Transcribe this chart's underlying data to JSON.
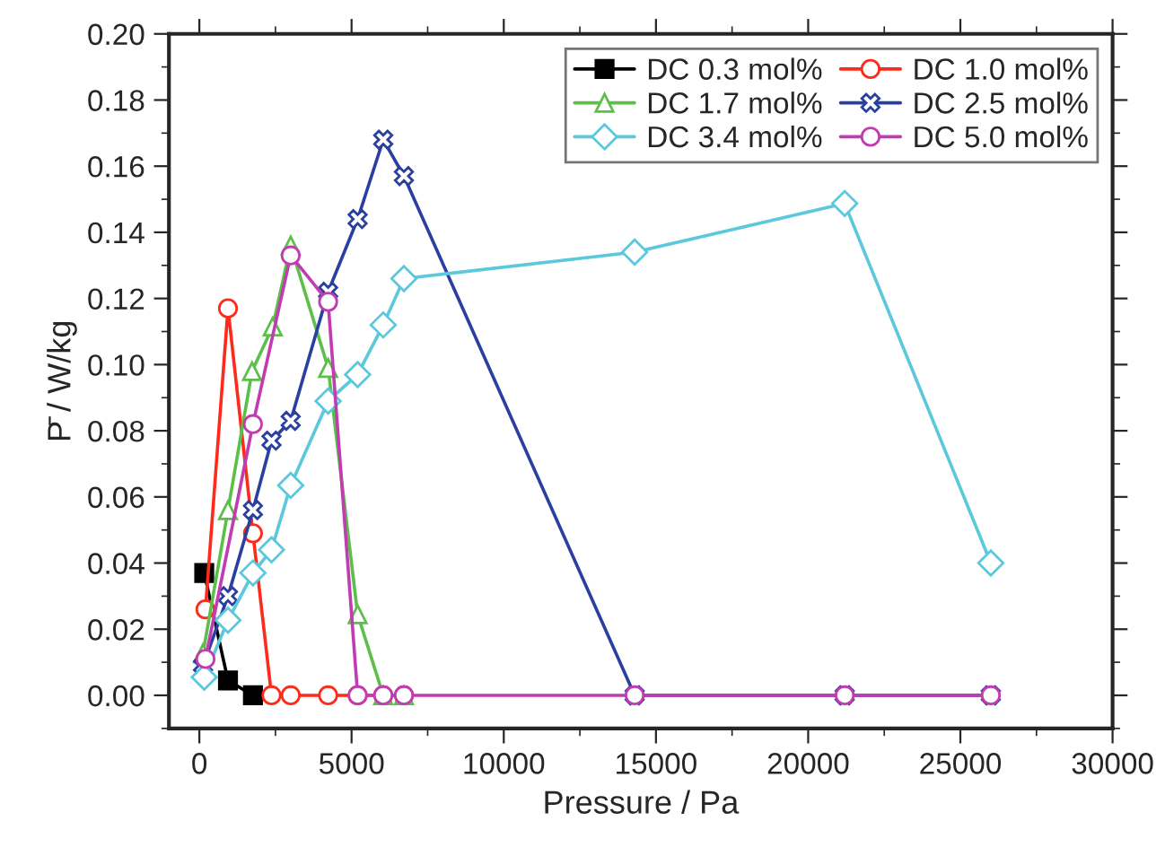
{
  "chart_data": {
    "type": "line",
    "xlabel": "Pressure / Pa",
    "ylabel": "P̄ / W/kg",
    "xlim": [
      -1000,
      30000
    ],
    "xticks": [
      0,
      5000,
      10000,
      15000,
      20000,
      25000,
      30000
    ],
    "ylim": [
      -0.01,
      0.2
    ],
    "yticks": [
      {
        "value": 0,
        "label": "0.00"
      },
      {
        "value": 0.02,
        "label": "0.02"
      },
      {
        "value": 0.04,
        "label": "0.04"
      },
      {
        "value": 0.06,
        "label": "0.06"
      },
      {
        "value": 0.08,
        "label": "0.08"
      },
      {
        "value": 0.1,
        "label": "0.10"
      },
      {
        "value": 0.12,
        "label": "0.12"
      },
      {
        "value": 0.14,
        "label": "0.14"
      },
      {
        "value": 0.16,
        "label": "0.16"
      },
      {
        "value": 0.18,
        "label": "0.18"
      },
      {
        "value": 0.2,
        "label": "0.20"
      }
    ],
    "grid": false,
    "legend": "top right",
    "series": [
      {
        "name": "DC 0.3 mol%",
        "color": "#000000",
        "marker": "square",
        "x": [
          160,
          940,
          1760
        ],
        "values": [
          0.037,
          0.0045,
          0
        ]
      },
      {
        "name": "DC 1.0 mol%",
        "color": "#ff2a1a",
        "marker": "circle",
        "x": [
          200,
          940,
          1760,
          2370,
          3000,
          4230,
          5200,
          6040,
          6720
        ],
        "values": [
          0.026,
          0.117,
          0.049,
          0,
          0,
          0,
          0,
          0,
          0
        ]
      },
      {
        "name": "DC 1.7 mol%",
        "color": "#5cbf4a",
        "marker": "triangle",
        "x": [
          120,
          940,
          1730,
          2410,
          3000,
          4230,
          5200,
          6040,
          6720
        ],
        "values": [
          0.0127,
          0.056,
          0.098,
          0.1115,
          0.136,
          0.099,
          0.0245,
          0,
          0
        ]
      },
      {
        "name": "DC 2.5 mol%",
        "color": "#2b3fa0",
        "marker": "cross",
        "x": [
          120,
          940,
          1760,
          2370,
          3000,
          4230,
          5200,
          6040,
          6720,
          14300,
          21200,
          26000
        ],
        "values": [
          0.009,
          0.03,
          0.056,
          0.077,
          0.083,
          0.122,
          0.144,
          0.168,
          0.157,
          0,
          0,
          0
        ]
      },
      {
        "name": "DC 3.4 mol%",
        "color": "#5bc8dc",
        "marker": "diamond",
        "x": [
          160,
          940,
          1760,
          2370,
          3000,
          4230,
          5200,
          6040,
          6720,
          14300,
          21200,
          26000
        ],
        "values": [
          0.0055,
          0.0227,
          0.037,
          0.044,
          0.0635,
          0.089,
          0.097,
          0.112,
          0.126,
          0.134,
          0.1487,
          0.04
        ]
      },
      {
        "name": "DC 5.0 mol%",
        "color": "#c03cb0",
        "marker": "circle",
        "x": [
          200,
          1760,
          3000,
          4230,
          5200,
          6040,
          6720,
          14300,
          21200,
          26000
        ],
        "values": [
          0.011,
          0.082,
          0.133,
          0.119,
          0,
          0,
          0,
          0,
          0,
          0
        ]
      }
    ]
  }
}
